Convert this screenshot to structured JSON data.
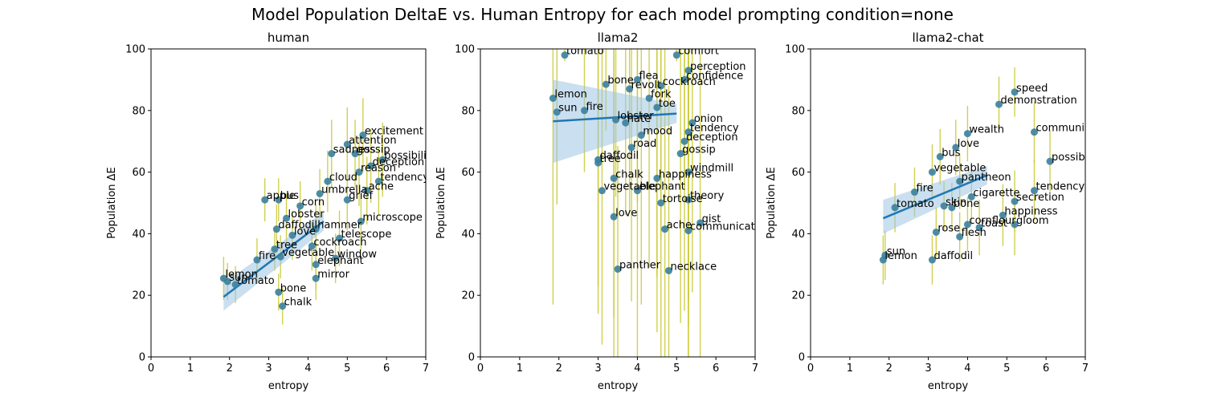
{
  "figure": {
    "title": "Model Population DeltaE vs. Human Entropy for each model prompting condition=none"
  },
  "colors": {
    "point": "#3a7f9e",
    "errorbar": "#c8c832",
    "fit_line": "#1f77b4",
    "ci_band": "#9ec4e2"
  },
  "chart_data": [
    {
      "type": "scatter",
      "title": "human",
      "xlabel": "entropy",
      "ylabel": "Population ΔE",
      "xlim": [
        0,
        7
      ],
      "ylim": [
        0,
        100
      ],
      "xticks": [
        0,
        1,
        2,
        3,
        4,
        5,
        6,
        7
      ],
      "yticks": [
        0,
        20,
        40,
        60,
        80,
        100
      ],
      "fit": {
        "x0": 1.85,
        "y0": 19.5,
        "x1": 4.4,
        "y1": 44,
        "ci_lo0": 15,
        "ci_hi0": 24,
        "ci_lo1": 41,
        "ci_hi1": 47
      },
      "points": [
        {
          "label": "lemon",
          "x": 1.85,
          "y": 25.5,
          "err": 7
        },
        {
          "label": "sun",
          "x": 1.95,
          "y": 24.5,
          "err": 6
        },
        {
          "label": "tomato",
          "x": 2.15,
          "y": 23.5,
          "err": 6
        },
        {
          "label": "apple",
          "x": 2.9,
          "y": 51,
          "err": 7
        },
        {
          "label": "bus",
          "x": 3.25,
          "y": 51,
          "err": 7
        },
        {
          "label": "fire",
          "x": 2.7,
          "y": 31.5,
          "err": 7
        },
        {
          "label": "tree",
          "x": 3.15,
          "y": 35,
          "err": 7
        },
        {
          "label": "bone",
          "x": 3.25,
          "y": 21,
          "err": 6
        },
        {
          "label": "chalk",
          "x": 3.35,
          "y": 16.5,
          "err": 6
        },
        {
          "label": "mirror",
          "x": 4.2,
          "y": 25.5,
          "err": 7
        },
        {
          "label": "elephant",
          "x": 4.2,
          "y": 30,
          "err": 8
        },
        {
          "label": "window",
          "x": 4.7,
          "y": 32,
          "err": 8
        },
        {
          "label": "love",
          "x": 3.6,
          "y": 39.5,
          "err": 8
        },
        {
          "label": "daffodil",
          "x": 3.2,
          "y": 41.5,
          "err": 8
        },
        {
          "label": "lobster",
          "x": 3.45,
          "y": 45,
          "err": 8
        },
        {
          "label": "cockroach",
          "x": 4.1,
          "y": 36,
          "err": 8
        },
        {
          "label": "telescope",
          "x": 4.8,
          "y": 38.5,
          "err": 9
        },
        {
          "label": "microscope",
          "x": 5.35,
          "y": 44,
          "err": 9
        },
        {
          "label": "hammer",
          "x": 4.2,
          "y": 41.5,
          "err": 8
        },
        {
          "label": "vegetable",
          "x": 3.3,
          "y": 32.5,
          "err": 7
        },
        {
          "label": "corn",
          "x": 3.8,
          "y": 49,
          "err": 8
        },
        {
          "label": "umbrella",
          "x": 4.3,
          "y": 53,
          "err": 8
        },
        {
          "label": "excitement",
          "x": 5.4,
          "y": 72,
          "err": 12
        },
        {
          "label": "attention",
          "x": 5.0,
          "y": 69,
          "err": 12
        },
        {
          "label": "gossip",
          "x": 5.2,
          "y": 66,
          "err": 11
        },
        {
          "label": "deception",
          "x": 5.6,
          "y": 62,
          "err": 12
        },
        {
          "label": "possibility",
          "x": 5.9,
          "y": 64,
          "err": 12
        },
        {
          "label": "tendency",
          "x": 5.8,
          "y": 57,
          "err": 11
        },
        {
          "label": "sadness",
          "x": 4.6,
          "y": 66,
          "err": 11
        },
        {
          "label": "reason",
          "x": 5.3,
          "y": 60,
          "err": 11
        },
        {
          "label": "ache",
          "x": 5.5,
          "y": 54,
          "err": 11
        },
        {
          "label": "grief",
          "x": 5.0,
          "y": 51,
          "err": 10
        },
        {
          "label": "cloud",
          "x": 4.5,
          "y": 57,
          "err": 10
        }
      ]
    },
    {
      "type": "scatter",
      "title": "llama2",
      "xlabel": "entropy",
      "ylabel": "Population ΔE",
      "xlim": [
        0,
        7
      ],
      "ylim": [
        0,
        100
      ],
      "xticks": [
        0,
        1,
        2,
        3,
        4,
        5,
        6,
        7
      ],
      "yticks": [
        0,
        20,
        40,
        60,
        80,
        100
      ],
      "fit": {
        "x0": 1.85,
        "y0": 76.5,
        "x1": 5.0,
        "y1": 79,
        "ci_lo0": 63,
        "ci_hi0": 90,
        "ci_lo1": 76,
        "ci_hi1": 82
      },
      "points": [
        {
          "label": "tomato",
          "x": 2.15,
          "y": 98,
          "err": 2
        },
        {
          "label": "lemon",
          "x": 1.85,
          "y": 84,
          "err": 67
        },
        {
          "label": "sun",
          "x": 1.95,
          "y": 79.5,
          "err": 30
        },
        {
          "label": "fire",
          "x": 2.65,
          "y": 80,
          "err": 20
        },
        {
          "label": "bone",
          "x": 3.2,
          "y": 88.5,
          "err": 15
        },
        {
          "label": "lobster",
          "x": 3.45,
          "y": 77,
          "err": 25
        },
        {
          "label": "hate",
          "x": 3.7,
          "y": 76,
          "err": 30
        },
        {
          "label": "daffodil",
          "x": 3.0,
          "y": 64,
          "err": 50
        },
        {
          "label": "tree",
          "x": 3.0,
          "y": 63,
          "err": 40
        },
        {
          "label": "chalk",
          "x": 3.4,
          "y": 58,
          "err": 45
        },
        {
          "label": "vegetable",
          "x": 3.1,
          "y": 54,
          "err": 50
        },
        {
          "label": "love",
          "x": 3.4,
          "y": 45.5,
          "err": 55
        },
        {
          "label": "elephant",
          "x": 4.0,
          "y": 54,
          "err": 60
        },
        {
          "label": "tortoise",
          "x": 4.6,
          "y": 50,
          "err": 60
        },
        {
          "label": "theory",
          "x": 5.3,
          "y": 51,
          "err": 55
        },
        {
          "label": "gist",
          "x": 5.6,
          "y": 43.5,
          "err": 55
        },
        {
          "label": "communication",
          "x": 5.3,
          "y": 41,
          "err": 55
        },
        {
          "label": "ache",
          "x": 4.7,
          "y": 41.5,
          "err": 60
        },
        {
          "label": "panther",
          "x": 3.5,
          "y": 28.5,
          "err": 40
        },
        {
          "label": "necklace",
          "x": 4.8,
          "y": 28,
          "err": 60
        },
        {
          "label": "windmill",
          "x": 5.3,
          "y": 60,
          "err": 50
        },
        {
          "label": "happiness",
          "x": 4.5,
          "y": 58,
          "err": 50
        },
        {
          "label": "comfort",
          "x": 5.0,
          "y": 98,
          "err": 2
        },
        {
          "label": "perception",
          "x": 5.3,
          "y": 93,
          "err": 30
        },
        {
          "label": "confidence",
          "x": 5.2,
          "y": 90,
          "err": 35
        },
        {
          "label": "revolt",
          "x": 3.8,
          "y": 87,
          "err": 40
        },
        {
          "label": "flea",
          "x": 4.0,
          "y": 90,
          "err": 40
        },
        {
          "label": "cockroach",
          "x": 4.6,
          "y": 88,
          "err": 50
        },
        {
          "label": "fork",
          "x": 4.3,
          "y": 84,
          "err": 55
        },
        {
          "label": "toe",
          "x": 4.5,
          "y": 81,
          "err": 55
        },
        {
          "label": "onion",
          "x": 5.4,
          "y": 76,
          "err": 55
        },
        {
          "label": "gossip",
          "x": 5.1,
          "y": 66,
          "err": 55
        },
        {
          "label": "deception",
          "x": 5.2,
          "y": 70,
          "err": 55
        },
        {
          "label": "tendency",
          "x": 5.3,
          "y": 73,
          "err": 55
        },
        {
          "label": "road",
          "x": 3.85,
          "y": 68,
          "err": 50
        },
        {
          "label": "mood",
          "x": 4.1,
          "y": 72,
          "err": 55
        }
      ]
    },
    {
      "type": "scatter",
      "title": "llama2-chat",
      "xlabel": "entropy",
      "ylabel": "Population ΔE",
      "xlim": [
        0,
        7
      ],
      "ylim": [
        0,
        100
      ],
      "xticks": [
        0,
        1,
        2,
        3,
        4,
        5,
        6,
        7
      ],
      "yticks": [
        0,
        20,
        40,
        60,
        80,
        100
      ],
      "fit": {
        "x0": 1.85,
        "y0": 45,
        "x1": 4.5,
        "y1": 59,
        "ci_lo0": 40,
        "ci_hi0": 51,
        "ci_lo1": 56,
        "ci_hi1": 62
      },
      "points": [
        {
          "label": "sun",
          "x": 1.9,
          "y": 33,
          "err": 8
        },
        {
          "label": "lemon",
          "x": 1.85,
          "y": 31.5,
          "err": 8
        },
        {
          "label": "tomato",
          "x": 2.15,
          "y": 48.5,
          "err": 8
        },
        {
          "label": "fire",
          "x": 2.65,
          "y": 53.5,
          "err": 8
        },
        {
          "label": "daffodil",
          "x": 3.1,
          "y": 31.5,
          "err": 8
        },
        {
          "label": "rose",
          "x": 3.2,
          "y": 40.5,
          "err": 8
        },
        {
          "label": "flesh",
          "x": 3.8,
          "y": 39,
          "err": 8
        },
        {
          "label": "skin",
          "x": 3.4,
          "y": 49,
          "err": 8
        },
        {
          "label": "bone",
          "x": 3.6,
          "y": 48.5,
          "err": 8
        },
        {
          "label": "cornflour",
          "x": 4.0,
          "y": 43,
          "err": 9
        },
        {
          "label": "toast",
          "x": 4.3,
          "y": 42,
          "err": 9
        },
        {
          "label": "gloom",
          "x": 5.2,
          "y": 43,
          "err": 10
        },
        {
          "label": "happiness",
          "x": 4.9,
          "y": 46,
          "err": 10
        },
        {
          "label": "secretion",
          "x": 5.2,
          "y": 50.5,
          "err": 10
        },
        {
          "label": "tendency",
          "x": 5.7,
          "y": 54,
          "err": 10
        },
        {
          "label": "possibility",
          "x": 6.1,
          "y": 63.5,
          "err": 10
        },
        {
          "label": "communication",
          "x": 5.7,
          "y": 73,
          "err": 10
        },
        {
          "label": "speed",
          "x": 5.2,
          "y": 86,
          "err": 8
        },
        {
          "label": "demonstration",
          "x": 4.8,
          "y": 82,
          "err": 9
        },
        {
          "label": "love",
          "x": 3.7,
          "y": 68,
          "err": 9
        },
        {
          "label": "vegetable",
          "x": 3.1,
          "y": 60,
          "err": 9
        },
        {
          "label": "pantheon",
          "x": 3.8,
          "y": 57,
          "err": 9
        },
        {
          "label": "cigarette",
          "x": 4.1,
          "y": 52,
          "err": 9
        },
        {
          "label": "wealth",
          "x": 4.0,
          "y": 72.5,
          "err": 9
        },
        {
          "label": "bus",
          "x": 3.3,
          "y": 65,
          "err": 9
        }
      ]
    }
  ]
}
